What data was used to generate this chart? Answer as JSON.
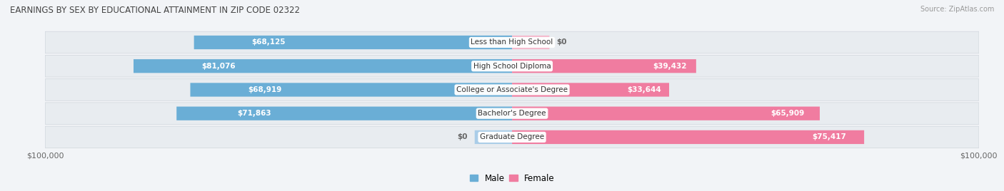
{
  "title": "EARNINGS BY SEX BY EDUCATIONAL ATTAINMENT IN ZIP CODE 02322",
  "source": "Source: ZipAtlas.com",
  "categories": [
    "Less than High School",
    "High School Diploma",
    "College or Associate's Degree",
    "Bachelor's Degree",
    "Graduate Degree"
  ],
  "male_values": [
    68125,
    81076,
    68919,
    71863,
    0
  ],
  "female_values": [
    0,
    39432,
    33644,
    65909,
    75417
  ],
  "male_labels": [
    "$68,125",
    "$81,076",
    "$68,919",
    "$71,863",
    "$0"
  ],
  "female_labels": [
    "$0",
    "$39,432",
    "$33,644",
    "$65,909",
    "$75,417"
  ],
  "male_stub": [
    0,
    0,
    0,
    0,
    8000
  ],
  "female_stub": [
    8000,
    0,
    0,
    0,
    0
  ],
  "max_value": 100000,
  "male_color": "#6aaed6",
  "female_color": "#f07ca0",
  "male_color_light": "#aacde8",
  "female_color_light": "#f5b8cc",
  "row_bg_color": "#e8ecf0",
  "bg_color": "#f2f4f7",
  "title_color": "#444444",
  "axis_label_color": "#666666",
  "category_text_color": "#333333",
  "bar_height": 0.58,
  "x_left_label": "$100,000",
  "x_right_label": "$100,000"
}
